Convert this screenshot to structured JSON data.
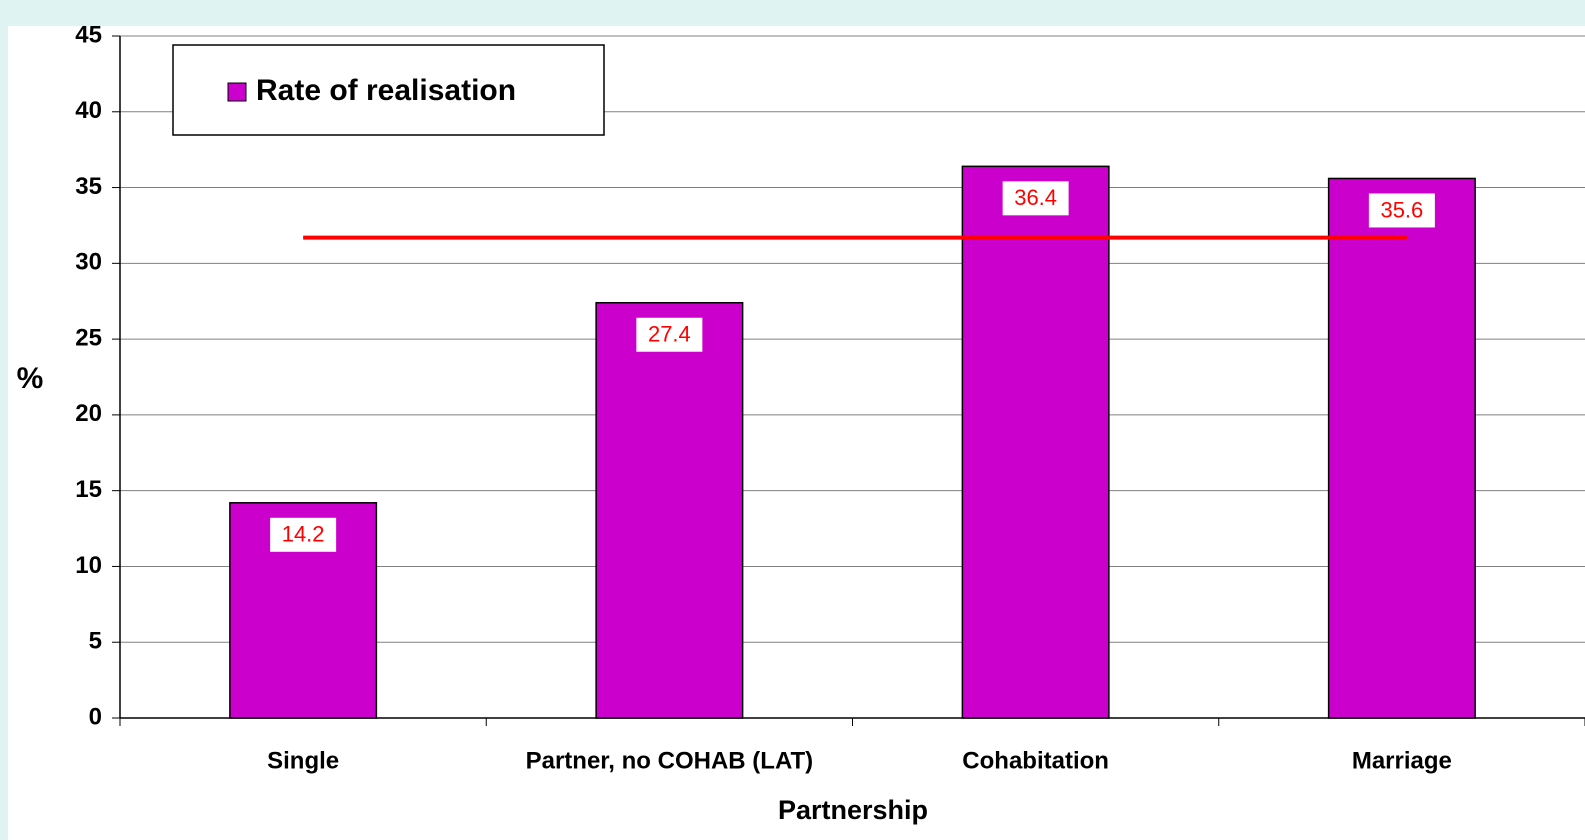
{
  "chart_data": {
    "type": "bar",
    "categories": [
      "Single",
      "Partner, no COHAB (LAT)",
      "Cohabitation",
      "Marriage"
    ],
    "series": [
      {
        "name": "Rate of realisation",
        "color": "#cc00cc",
        "values": [
          14.2,
          27.4,
          36.4,
          35.6
        ]
      }
    ],
    "reference_line": {
      "value": 31.7,
      "color": "#ff0000"
    },
    "ylabel": "%",
    "xlabel": "Partnership",
    "ylim": [
      0,
      45
    ],
    "yticks": [
      0,
      5,
      10,
      15,
      20,
      25,
      30,
      35,
      40,
      45
    ],
    "grid": true,
    "legend": "upper left"
  }
}
